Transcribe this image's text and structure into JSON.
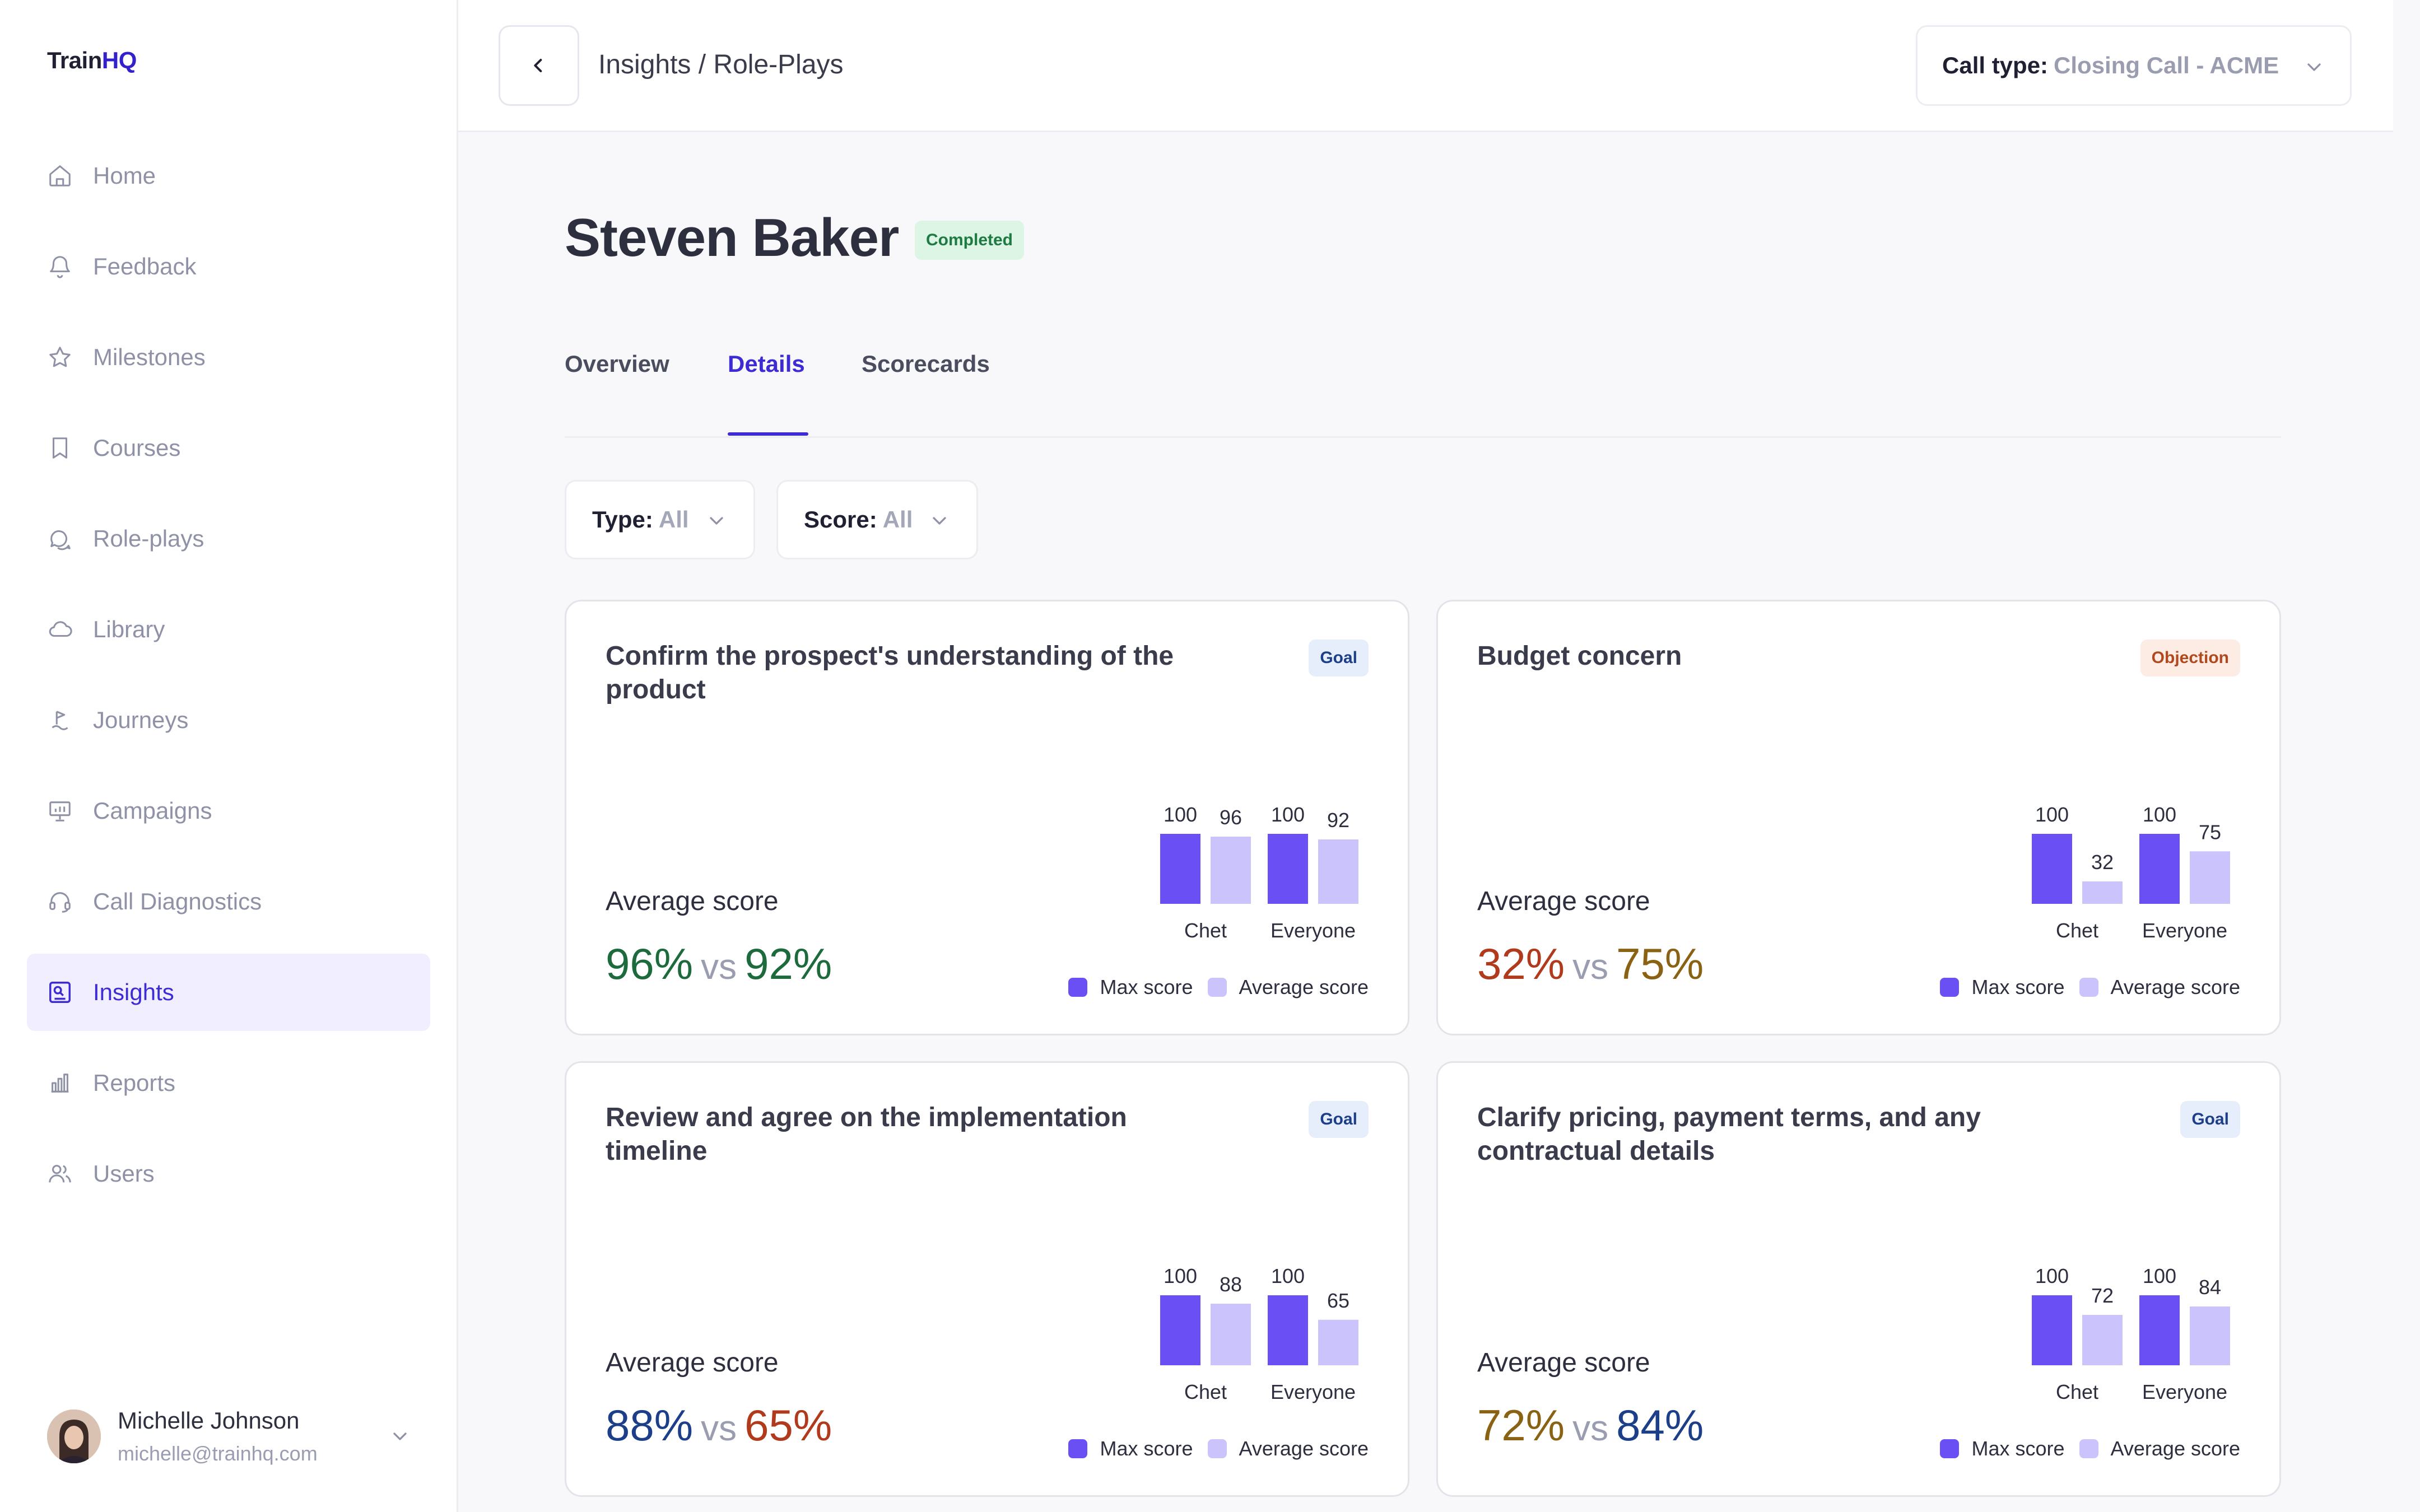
{
  "app": {
    "brand_prefix": "Train",
    "brand_suffix": "HQ"
  },
  "sidebar": {
    "items": [
      {
        "label": "Home",
        "icon": "home-icon"
      },
      {
        "label": "Feedback",
        "icon": "bell-icon"
      },
      {
        "label": "Milestones",
        "icon": "star-icon"
      },
      {
        "label": "Courses",
        "icon": "bookmark-icon"
      },
      {
        "label": "Role-plays",
        "icon": "chat-icon"
      },
      {
        "label": "Library",
        "icon": "cloud-icon"
      },
      {
        "label": "Journeys",
        "icon": "flag-icon"
      },
      {
        "label": "Campaigns",
        "icon": "presentation-icon"
      },
      {
        "label": "Call Diagnostics",
        "icon": "headset-icon"
      },
      {
        "label": "Insights",
        "icon": "insights-icon",
        "active": true
      },
      {
        "label": "Reports",
        "icon": "bar-chart-icon"
      },
      {
        "label": "Users",
        "icon": "users-icon"
      }
    ],
    "user": {
      "name": "Michelle Johnson",
      "email": "michelle@trainhq.com"
    }
  },
  "header": {
    "breadcrumb": "Insights / Role-Plays",
    "call_type_label": "Call type:",
    "call_type_value": "Closing Call - ACME"
  },
  "page": {
    "title": "Steven Baker",
    "status": "Completed",
    "tabs": [
      "Overview",
      "Details",
      "Scorecards"
    ],
    "active_tab": "Details",
    "filters": [
      {
        "label": "Type:",
        "value": "All"
      },
      {
        "label": "Score:",
        "value": "All"
      }
    ]
  },
  "colors": {
    "accent": "#3d2bd4",
    "max_bar": "#6a4ff5",
    "avg_bar": "#cbc3fb",
    "green": "#1d6b3c",
    "blue": "#1d3f8a",
    "red": "#b03a1b",
    "olive": "#8a6214"
  },
  "cards": [
    {
      "title": "Confirm the prospect's understanding of the product",
      "badge": "Goal",
      "badge_type": "goal",
      "avg_label": "Average score",
      "left_value": "96%",
      "vs": "vs",
      "right_value": "92%",
      "left_color": "#1d6b3c",
      "right_color": "#1d6b3c",
      "chart_data": {
        "type": "bar",
        "categories": [
          "Chet",
          "Everyone"
        ],
        "series": [
          {
            "name": "Max score",
            "values": [
              100,
              100
            ]
          },
          {
            "name": "Average score",
            "values": [
              96,
              92
            ]
          }
        ]
      }
    },
    {
      "title": "Budget concern",
      "badge": "Objection",
      "badge_type": "objection",
      "avg_label": "Average score",
      "left_value": "32%",
      "vs": "vs",
      "right_value": "75%",
      "left_color": "#b03a1b",
      "right_color": "#8a6214",
      "chart_data": {
        "type": "bar",
        "categories": [
          "Chet",
          "Everyone"
        ],
        "series": [
          {
            "name": "Max score",
            "values": [
              100,
              100
            ]
          },
          {
            "name": "Average score",
            "values": [
              32,
              75
            ]
          }
        ]
      }
    },
    {
      "title": "Review and agree on the implementation timeline",
      "badge": "Goal",
      "badge_type": "goal",
      "avg_label": "Average score",
      "left_value": "88%",
      "vs": "vs",
      "right_value": "65%",
      "left_color": "#1d3f8a",
      "right_color": "#b03a1b",
      "chart_data": {
        "type": "bar",
        "categories": [
          "Chet",
          "Everyone"
        ],
        "series": [
          {
            "name": "Max score",
            "values": [
              100,
              100
            ]
          },
          {
            "name": "Average score",
            "values": [
              88,
              65
            ]
          }
        ]
      }
    },
    {
      "title": "Clarify pricing, payment terms, and any contractual details",
      "badge": "Goal",
      "badge_type": "goal",
      "avg_label": "Average score",
      "left_value": "72%",
      "vs": "vs",
      "right_value": "84%",
      "left_color": "#8a6214",
      "right_color": "#1d3f8a",
      "chart_data": {
        "type": "bar",
        "categories": [
          "Chet",
          "Everyone"
        ],
        "series": [
          {
            "name": "Max score",
            "values": [
              100,
              100
            ]
          },
          {
            "name": "Average score",
            "values": [
              72,
              84
            ]
          }
        ]
      }
    }
  ],
  "legend": {
    "max": "Max score",
    "avg": "Average score"
  }
}
